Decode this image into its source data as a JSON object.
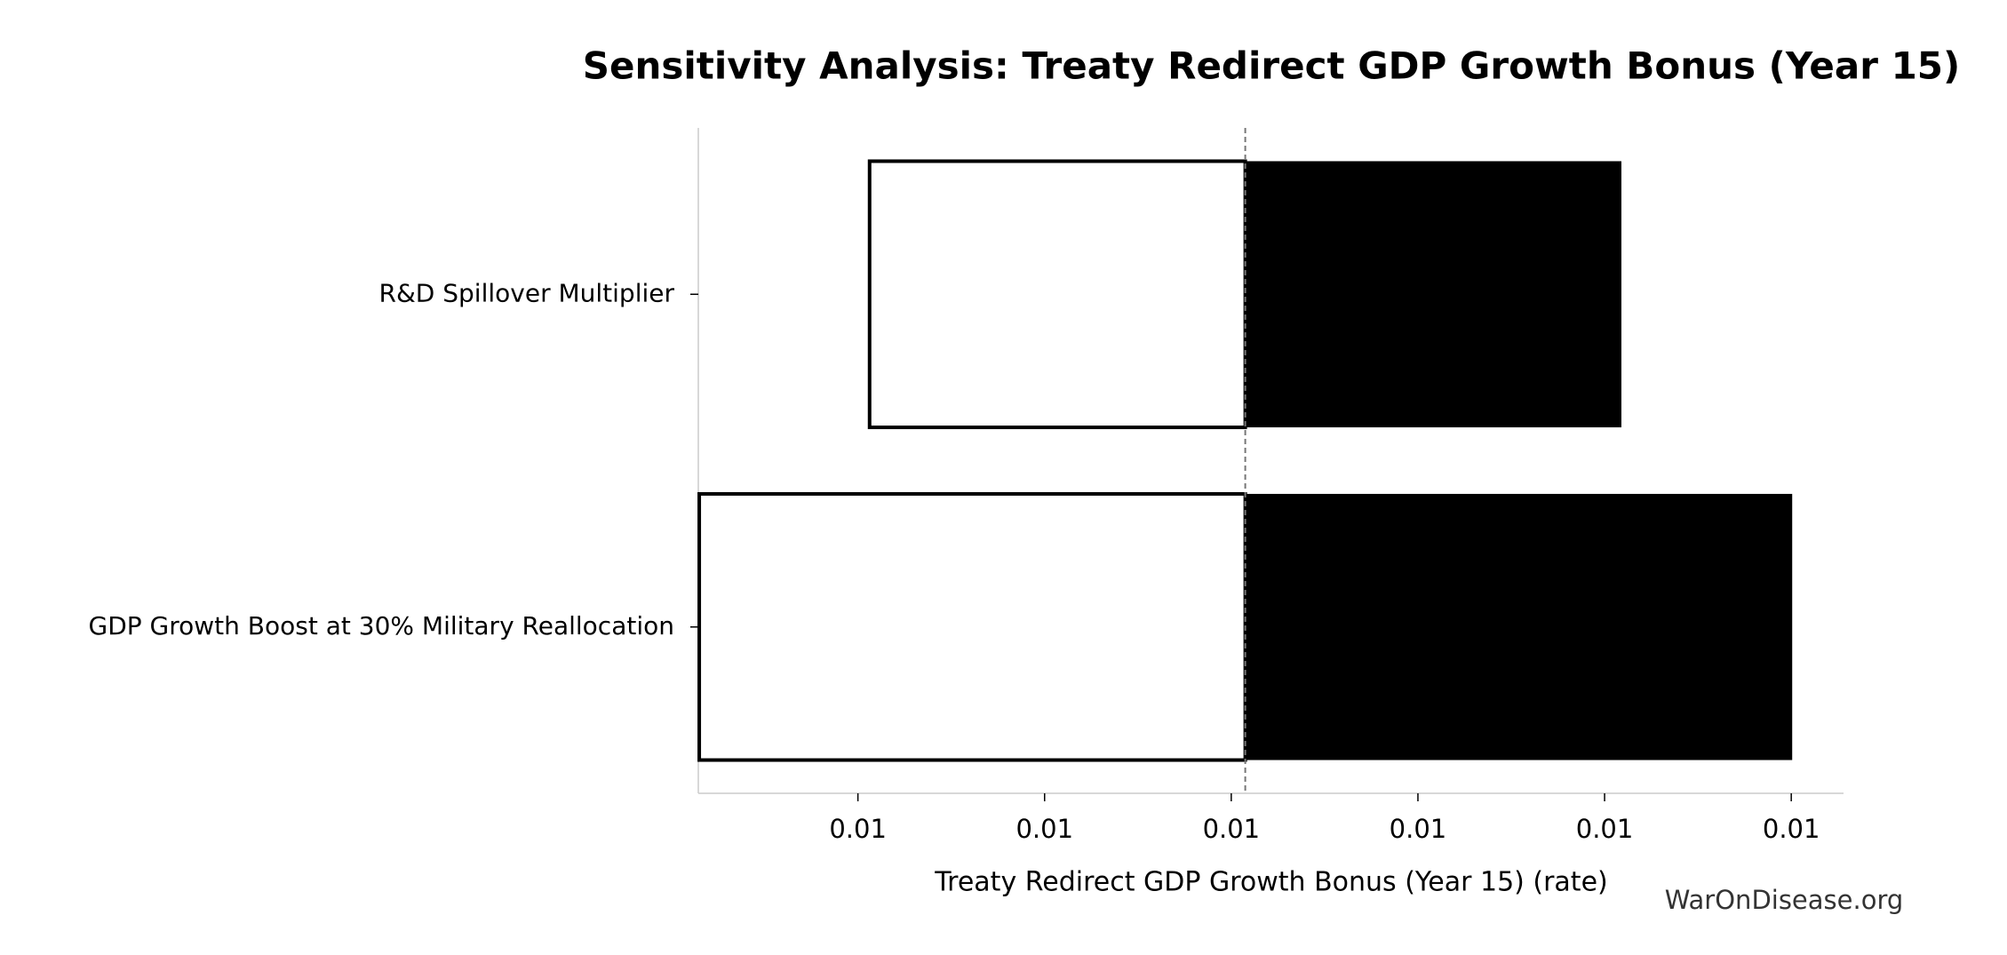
{
  "chart_data": {
    "type": "tornado",
    "title": "Sensitivity Analysis: Treaty Redirect GDP Growth Bonus (Year 15)",
    "xlabel": "Treaty Redirect GDP Growth Bonus (Year 15) (rate)",
    "watermark": "WarOnDisease.org",
    "categories": [
      "R&D Spillover Multiplier",
      "GDP Growth Boost at 30% Military Reallocation"
    ],
    "baseline": 0.010015,
    "low_values": [
      0.0096125,
      0.00943
    ],
    "high_values": [
      0.010418,
      0.010601
    ],
    "low_color": "#ffffff",
    "high_color": "#000000",
    "xlim": [
      0.009429,
      0.010656
    ],
    "xticks": [
      {
        "value": 0.0096,
        "label": "0.01"
      },
      {
        "value": 0.0098,
        "label": "0.01"
      },
      {
        "value": 0.01,
        "label": "0.01"
      },
      {
        "value": 0.0102,
        "label": "0.01"
      },
      {
        "value": 0.0104,
        "label": "0.01"
      },
      {
        "value": 0.0106,
        "label": "0.01"
      }
    ]
  }
}
